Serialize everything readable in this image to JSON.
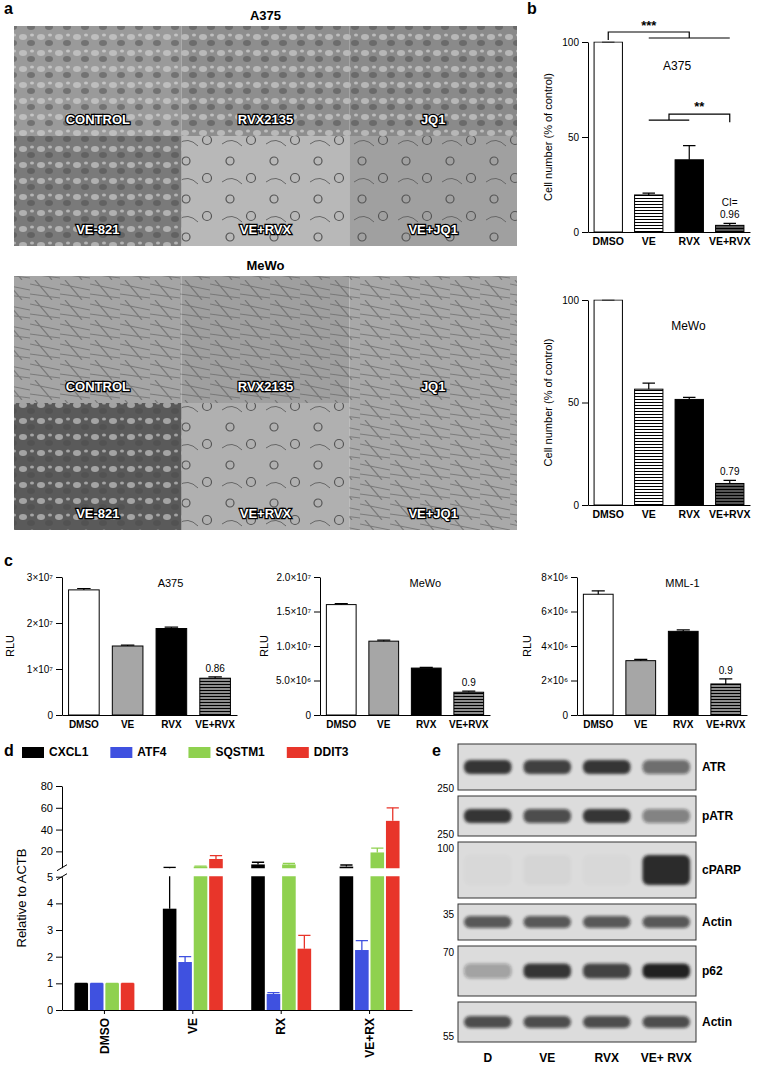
{
  "panel_labels": [
    "a",
    "b",
    "c",
    "d",
    "e"
  ],
  "micrographs": [
    {
      "title": "A375",
      "labels": [
        "CONTROL",
        "RVX2135",
        "JQ1",
        "VE-821",
        "VE+RVX",
        "VE+JQ1"
      ]
    },
    {
      "title": "MeWo",
      "labels": [
        "CONTROL",
        "RVX2135",
        "JQ1",
        "VE-821",
        "VE+RVX",
        "VE+JQ1"
      ]
    }
  ],
  "chart_data": [
    {
      "type": "bar",
      "title": "A375",
      "y_label": "Cell number (% of control)",
      "categories": [
        "DMSO",
        "VE",
        "RVX",
        "VE+RVX"
      ],
      "values": [
        100,
        19.5,
        38,
        3.5
      ],
      "errors": [
        0,
        1,
        7.5,
        1
      ],
      "colors": [
        "#ffffff",
        "#ffffff",
        "#000000",
        "#555555"
      ],
      "ylim": [
        0,
        100
      ],
      "yticks": [
        0,
        50,
        100
      ],
      "annotations": [
        "***",
        "**"
      ],
      "ci": {
        "label": "CI=",
        "value": 0.96
      }
    },
    {
      "type": "bar",
      "title": "MeWo",
      "y_label": "Cell number (% of control)",
      "categories": [
        "DMSO",
        "VE",
        "RVX",
        "VE+RVX"
      ],
      "values": [
        100,
        56.5,
        51.5,
        10.5
      ],
      "errors": [
        0,
        3,
        1,
        1.5
      ],
      "colors": [
        "#ffffff",
        "#ffffff",
        "#000000",
        "#555555"
      ],
      "ylim": [
        0,
        100
      ],
      "yticks": [
        0,
        50,
        100
      ],
      "ci": {
        "value": 0.79
      }
    },
    {
      "type": "bar",
      "title": "A375",
      "y_label": "RLU",
      "categories": [
        "DMSO",
        "VE",
        "RVX",
        "VE+RVX"
      ],
      "values": [
        27200000,
        15000000,
        18800000,
        8000000
      ],
      "errors": [
        300000,
        200000,
        300000,
        300000
      ],
      "colors": [
        "#ffffff",
        "#a6a6a6",
        "#000000",
        "#8c8c8c"
      ],
      "ylim": [
        0,
        30000000
      ],
      "yticks": [
        0,
        {
          "value": 10000000,
          "label": "1×10⁷"
        },
        {
          "value": 20000000,
          "label": "2×10⁷"
        },
        {
          "value": 30000000,
          "label": "3×10⁷"
        }
      ],
      "ci": {
        "value": 0.86
      }
    },
    {
      "type": "bar",
      "title": "MeWo",
      "y_label": "RLU",
      "categories": [
        "DMSO",
        "VE",
        "RVX",
        "VE+RVX"
      ],
      "values": [
        16000000,
        10700000,
        6800000,
        3300000
      ],
      "errors": [
        150000,
        150000,
        100000,
        150000
      ],
      "colors": [
        "#ffffff",
        "#a6a6a6",
        "#000000",
        "#8c8c8c"
      ],
      "ylim": [
        0,
        20000000
      ],
      "yticks": [
        0,
        {
          "value": 5000000,
          "label": "5.0×10⁶"
        },
        {
          "value": 10000000,
          "label": "1.0×10⁷"
        },
        {
          "value": 15000000,
          "label": "1.5×10⁷"
        },
        {
          "value": 20000000,
          "label": "2.0×10⁷"
        }
      ],
      "ci": {
        "value": 0.9
      }
    },
    {
      "type": "bar",
      "title": "MML-1",
      "y_label": "RLU",
      "categories": [
        "DMSO",
        "VE",
        "RVX",
        "VE+RVX"
      ],
      "values": [
        7000000,
        3150000,
        4850000,
        1800000
      ],
      "errors": [
        200000,
        80000,
        80000,
        300000
      ],
      "colors": [
        "#ffffff",
        "#a6a6a6",
        "#000000",
        "#8c8c8c"
      ],
      "ylim": [
        0,
        8000000
      ],
      "yticks": [
        0,
        {
          "value": 2000000,
          "label": "2×10⁶"
        },
        {
          "value": 4000000,
          "label": "4×10⁶"
        },
        {
          "value": 6000000,
          "label": "6×10⁶"
        },
        {
          "value": 8000000,
          "label": "8×10⁶"
        }
      ],
      "ci": {
        "value": 0.9
      }
    },
    {
      "type": "bar",
      "y_label": "Relative to ACTB",
      "categories": [
        "DMSO",
        "VE",
        "RX",
        "VE+RX"
      ],
      "series": [
        {
          "name": "CXCL1",
          "color": "#000000",
          "values": [
            1,
            3.8,
            8,
            6
          ],
          "errors": [
            0,
            1.4,
            2,
            1.5
          ]
        },
        {
          "name": "ATF4",
          "color": "#3f51e0",
          "values": [
            1,
            1.8,
            0.6,
            2.25
          ],
          "errors": [
            0,
            0.2,
            0.05,
            0.35
          ]
        },
        {
          "name": "SQSTM1",
          "color": "#8fd14f",
          "values": [
            1,
            6,
            8,
            19
          ],
          "errors": [
            0,
            0.5,
            1,
            4
          ]
        },
        {
          "name": "DDIT3",
          "color": "#e8352a",
          "values": [
            1,
            13,
            2.3,
            48
          ],
          "errors": [
            0,
            3,
            0.5,
            12
          ]
        }
      ],
      "ylim": [
        [
          0,
          5
        ],
        [
          5,
          80
        ]
      ],
      "yticks": [
        0,
        1,
        2,
        3,
        4,
        5,
        20,
        40,
        60,
        80
      ],
      "legend": "top"
    }
  ],
  "blot": {
    "lanes": [
      "D",
      "VE",
      "RVX",
      "VE+ RVX"
    ],
    "rows": [
      {
        "label": "ATR",
        "kda": 250,
        "bands": [
          0.85,
          0.8,
          0.85,
          0.55
        ]
      },
      {
        "label": "pATR",
        "kda": 250,
        "bands": [
          0.85,
          0.7,
          0.85,
          0.45
        ]
      },
      {
        "label": "cPARP",
        "kda": 100,
        "bands": [
          0.02,
          0.03,
          0.02,
          0.9
        ]
      },
      {
        "label": "Actin",
        "kda": 35,
        "bands": [
          0.65,
          0.65,
          0.65,
          0.65
        ]
      },
      {
        "label": "p62",
        "kda": 70,
        "bands": [
          0.3,
          0.85,
          0.75,
          0.95
        ]
      },
      {
        "label": "Actin",
        "kda": 55,
        "bands": [
          0.7,
          0.7,
          0.7,
          0.7
        ]
      }
    ]
  }
}
